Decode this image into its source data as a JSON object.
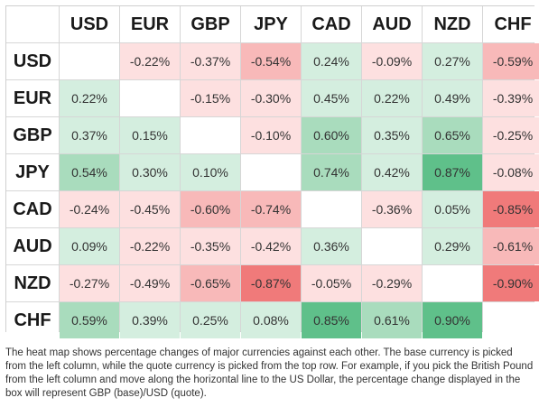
{
  "chart_data": {
    "type": "heatmap",
    "currencies": [
      "USD",
      "EUR",
      "GBP",
      "JPY",
      "CAD",
      "AUD",
      "NZD",
      "CHF"
    ],
    "rows": [
      "USD",
      "EUR",
      "GBP",
      "JPY",
      "CAD",
      "AUD",
      "NZD",
      "CHF"
    ],
    "columns": [
      "USD",
      "EUR",
      "GBP",
      "JPY",
      "CAD",
      "AUD",
      "NZD",
      "CHF"
    ],
    "unit": "%",
    "values": [
      [
        null,
        -0.22,
        -0.37,
        -0.54,
        0.24,
        -0.09,
        0.27,
        -0.59
      ],
      [
        0.22,
        null,
        -0.15,
        -0.3,
        0.45,
        0.22,
        0.49,
        -0.39
      ],
      [
        0.37,
        0.15,
        null,
        -0.1,
        0.6,
        0.35,
        0.65,
        -0.25
      ],
      [
        0.54,
        0.3,
        0.1,
        null,
        0.74,
        0.42,
        0.87,
        -0.08
      ],
      [
        -0.24,
        -0.45,
        -0.6,
        -0.74,
        null,
        -0.36,
        0.05,
        -0.85
      ],
      [
        0.09,
        -0.22,
        -0.35,
        -0.42,
        0.36,
        null,
        0.29,
        -0.61
      ],
      [
        -0.27,
        -0.49,
        -0.65,
        -0.87,
        -0.05,
        -0.29,
        null,
        -0.9
      ],
      [
        0.59,
        0.39,
        0.25,
        0.08,
        0.85,
        0.61,
        0.9,
        null
      ]
    ],
    "labels": [
      [
        "",
        "-0.22%",
        "-0.37%",
        "-0.54%",
        "0.24%",
        "-0.09%",
        "0.27%",
        "-0.59%"
      ],
      [
        "0.22%",
        "",
        "-0.15%",
        "-0.30%",
        "0.45%",
        "0.22%",
        "0.49%",
        "-0.39%"
      ],
      [
        "0.37%",
        "0.15%",
        "",
        "-0.10%",
        "0.60%",
        "0.35%",
        "0.65%",
        "-0.25%"
      ],
      [
        "0.54%",
        "0.30%",
        "0.10%",
        "",
        "0.74%",
        "0.42%",
        "0.87%",
        "-0.08%"
      ],
      [
        "-0.24%",
        "-0.45%",
        "-0.60%",
        "-0.74%",
        "",
        "-0.36%",
        "0.05%",
        "-0.85%"
      ],
      [
        "0.09%",
        "-0.22%",
        "-0.35%",
        "-0.42%",
        "0.36%",
        "",
        "0.29%",
        "-0.61%"
      ],
      [
        "-0.27%",
        "-0.49%",
        "-0.65%",
        "-0.87%",
        "-0.05%",
        "-0.29%",
        "",
        "-0.90%"
      ],
      [
        "0.59%",
        "0.39%",
        "0.25%",
        "0.08%",
        "0.85%",
        "0.61%",
        "0.90%",
        ""
      ]
    ],
    "colors": {
      "positive_light": "#d4eedf",
      "positive_mid": "#a9dcbd",
      "positive_strong": "#5fc08a",
      "negative_light": "#fde0e0",
      "negative_mid": "#f8b9b9",
      "negative_strong": "#f07a7a",
      "diagonal": "#ffffff"
    }
  },
  "caption": "The heat map shows percentage changes of major currencies against each other. The base currency is picked from the left column, while the quote currency is picked from the top row. For example, if you pick the British Pound from the left column and move along the horizontal line to the US Dollar, the percentage change displayed in the box will represent GBP (base)/USD (quote)."
}
